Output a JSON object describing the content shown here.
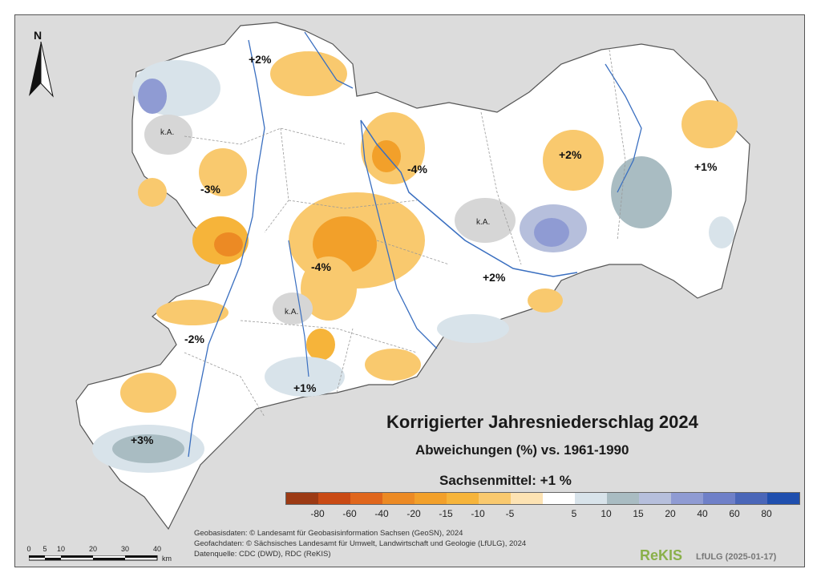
{
  "title": "Korrigierter Jahresniederschlag 2024",
  "subtitle": "Abweichungen (%) vs. 1961-1990",
  "mean": "Sachsenmittel: +1 %",
  "north_label": "N",
  "legend": {
    "colors": [
      "#9c3a14",
      "#c94a14",
      "#e0661c",
      "#ec8a24",
      "#f2a02a",
      "#f6b43a",
      "#f9c96e",
      "#fde3b3",
      "#ffffff",
      "#d8e3ea",
      "#a9bcc2",
      "#b6bfdc",
      "#8f9bd3",
      "#6f80c8",
      "#4a66b8",
      "#1f4fae"
    ],
    "ticks": [
      "-80",
      "-60",
      "-40",
      "-20",
      "-15",
      "-10",
      "-5",
      "5",
      "10",
      "15",
      "20",
      "40",
      "60",
      "80"
    ]
  },
  "labels": [
    {
      "id": "nw-plus2",
      "text": "+2%"
    },
    {
      "id": "west-minus3",
      "text": "-3%"
    },
    {
      "id": "center-minus4a",
      "text": "-4%"
    },
    {
      "id": "center-minus4b",
      "text": "-4%"
    },
    {
      "id": "east-plus2a",
      "text": "+2%"
    },
    {
      "id": "east-plus1",
      "text": "+1%"
    },
    {
      "id": "south-plus2",
      "text": "+2%"
    },
    {
      "id": "sw-minus2",
      "text": "-2%"
    },
    {
      "id": "south-plus1",
      "text": "+1%"
    },
    {
      "id": "sw-plus3",
      "text": "+3%"
    }
  ],
  "no_data_labels": [
    "k.A.",
    "k.A.",
    "k.A."
  ],
  "credits": {
    "line1": "Geobasisdaten: © Landesamt für Geobasisinformation Sachsen (GeoSN), 2024",
    "line2": "Geofachdaten: © Sächsisches Landesamt für Umwelt, Landwirtschaft und Geologie (LfULG), 2024",
    "line3": "Datenquelle: CDC (DWD), RDC (ReKIS)"
  },
  "brand": {
    "name": "ReKIS",
    "sub": "LfULG (2025-01-17)"
  },
  "scale_bar": {
    "ticks": [
      "0",
      "5",
      "10",
      "20",
      "30",
      "40"
    ],
    "unit": "km"
  }
}
